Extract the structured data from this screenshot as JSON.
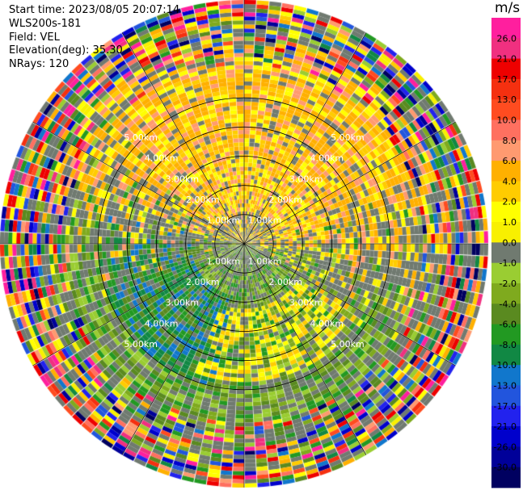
{
  "header": {
    "start_time": "Start time: 2023/08/05 20:07:14",
    "instrument": "WLS200s-181",
    "field": "Field: VEL",
    "elevation": "Elevation(deg): 35.30",
    "nrays": "NRays: 120"
  },
  "chart_data": {
    "type": "heatmap",
    "projection": "polar-ppi",
    "field": "VEL",
    "units": "m/s",
    "nrays": 120,
    "ring_labels": [
      "1.00km",
      "2.00km",
      "3.00km",
      "4.00km",
      "5.00km"
    ],
    "range_rings_km": [
      1,
      2,
      3,
      4,
      5
    ],
    "max_range_km": 5,
    "radial_lines": 12,
    "colorbar": {
      "title": "m/s",
      "ticks": [
        "26.0",
        "21.0",
        "17.0",
        "13.0",
        "10.0",
        "8.0",
        "6.0",
        "4.0",
        "2.0",
        "1.0",
        "0.0",
        "-1.0",
        "-2.0",
        "-4.0",
        "-6.0",
        "-8.0",
        "-10.0",
        "-13.0",
        "-17.0",
        "-21.0",
        "-26.0",
        "-30.0"
      ],
      "colors": [
        "#ff1f9e",
        "#f03080",
        "#ee0000",
        "#f53010",
        "#ff4c20",
        "#ff7060",
        "#ff9a70",
        "#ffb000",
        "#ffcc00",
        "#ffff00",
        "#f8f000",
        "#707a70",
        "#9acd32",
        "#7faa1e",
        "#5a8a20",
        "#229922",
        "#118844",
        "#1177cc",
        "#2255dd",
        "#2222ee",
        "#0000cc",
        "#000099",
        "#000060"
      ]
    },
    "pattern": {
      "near_positive_sector": "north",
      "near_negative_sector": "south-west",
      "far_range": "noise"
    }
  }
}
